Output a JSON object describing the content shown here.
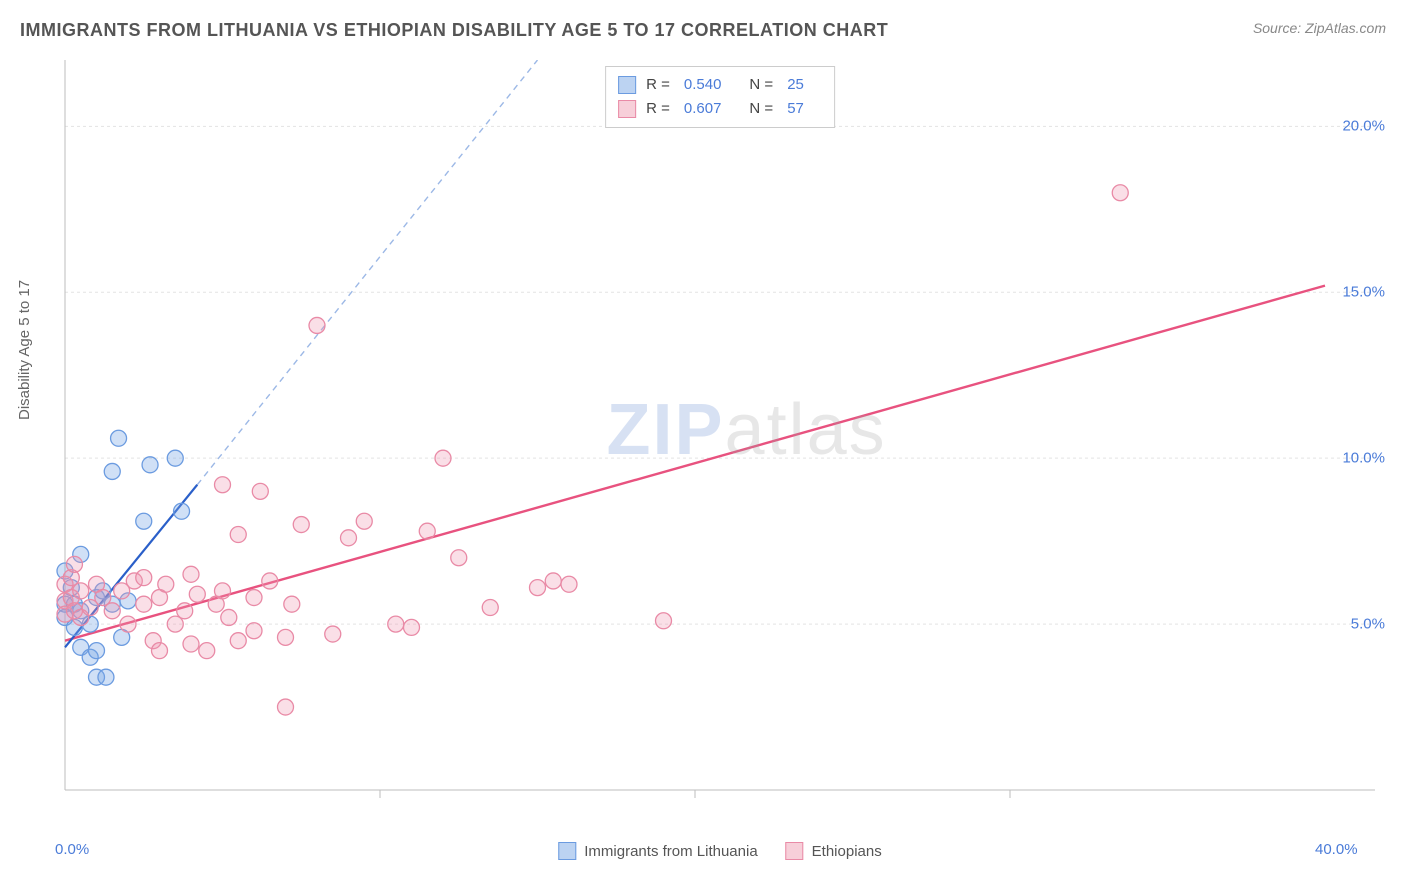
{
  "header": {
    "title": "IMMIGRANTS FROM LITHUANIA VS ETHIOPIAN DISABILITY AGE 5 TO 17 CORRELATION CHART",
    "source": "Source: ZipAtlas.com"
  },
  "watermark": {
    "part1": "ZIP",
    "part2": "atlas"
  },
  "chart": {
    "type": "scatter",
    "y_axis_label": "Disability Age 5 to 17",
    "xlim": [
      0,
      40
    ],
    "ylim": [
      0,
      22
    ],
    "x_ticks": [
      {
        "value": 0,
        "label": "0.0%"
      },
      {
        "value": 40,
        "label": "40.0%"
      }
    ],
    "y_ticks": [
      {
        "value": 5,
        "label": "5.0%"
      },
      {
        "value": 10,
        "label": "10.0%"
      },
      {
        "value": 15,
        "label": "15.0%"
      },
      {
        "value": 20,
        "label": "20.0%"
      }
    ],
    "x_tick_marks": [
      10,
      20,
      30
    ],
    "grid_color": "#e3e3e3",
    "axis_color": "#bdbdbd",
    "background_color": "#ffffff",
    "marker_radius": 8,
    "marker_stroke_width": 1.3,
    "series": [
      {
        "id": "lithuania",
        "label": "Immigrants from Lithuania",
        "color_fill": "rgba(120,165,230,0.35)",
        "color_stroke": "#6b9be0",
        "swatch_fill": "#bcd3f2",
        "swatch_stroke": "#6b9be0",
        "trend": {
          "x1": 0,
          "y1": 4.3,
          "x2": 4.2,
          "y2": 9.2,
          "color": "#2a5fc9",
          "width": 2.2,
          "dash": ""
        },
        "trend_ext": {
          "x1": 4.2,
          "y1": 9.2,
          "x2": 15,
          "y2": 22,
          "color": "#9cb8e6",
          "width": 1.4,
          "dash": "6 5"
        },
        "R": "0.540",
        "N": "25",
        "points": [
          [
            0.0,
            5.6
          ],
          [
            0.0,
            6.6
          ],
          [
            0.0,
            5.2
          ],
          [
            0.2,
            6.1
          ],
          [
            0.3,
            5.6
          ],
          [
            0.3,
            4.9
          ],
          [
            0.5,
            4.3
          ],
          [
            0.5,
            5.4
          ],
          [
            0.5,
            7.1
          ],
          [
            0.8,
            5.0
          ],
          [
            0.8,
            4.0
          ],
          [
            1.0,
            3.4
          ],
          [
            1.0,
            5.8
          ],
          [
            1.0,
            4.2
          ],
          [
            1.2,
            6.0
          ],
          [
            1.3,
            3.4
          ],
          [
            1.5,
            5.6
          ],
          [
            1.5,
            9.6
          ],
          [
            1.7,
            10.6
          ],
          [
            1.8,
            4.6
          ],
          [
            2.0,
            5.7
          ],
          [
            2.5,
            8.1
          ],
          [
            2.7,
            9.8
          ],
          [
            3.5,
            10.0
          ],
          [
            3.7,
            8.4
          ]
        ]
      },
      {
        "id": "ethiopians",
        "label": "Ethiopians",
        "color_fill": "rgba(240,150,175,0.30)",
        "color_stroke": "#e98aa6",
        "swatch_fill": "#f7cfd9",
        "swatch_stroke": "#e98aa6",
        "trend": {
          "x1": 0,
          "y1": 4.5,
          "x2": 40,
          "y2": 15.2,
          "color": "#e8527f",
          "width": 2.4,
          "dash": ""
        },
        "R": "0.607",
        "N": "57",
        "points": [
          [
            0.0,
            5.7
          ],
          [
            0.0,
            6.2
          ],
          [
            0.0,
            5.3
          ],
          [
            0.2,
            6.4
          ],
          [
            0.2,
            5.8
          ],
          [
            0.3,
            6.8
          ],
          [
            0.3,
            5.4
          ],
          [
            0.5,
            6.0
          ],
          [
            0.5,
            5.2
          ],
          [
            0.8,
            5.5
          ],
          [
            1.0,
            6.2
          ],
          [
            1.2,
            5.8
          ],
          [
            1.5,
            5.4
          ],
          [
            1.8,
            6.0
          ],
          [
            2.0,
            5.0
          ],
          [
            2.2,
            6.3
          ],
          [
            2.5,
            5.6
          ],
          [
            2.5,
            6.4
          ],
          [
            2.8,
            4.5
          ],
          [
            3.0,
            4.2
          ],
          [
            3.0,
            5.8
          ],
          [
            3.2,
            6.2
          ],
          [
            3.5,
            5.0
          ],
          [
            3.8,
            5.4
          ],
          [
            4.0,
            4.4
          ],
          [
            4.0,
            6.5
          ],
          [
            4.2,
            5.9
          ],
          [
            4.5,
            4.2
          ],
          [
            4.8,
            5.6
          ],
          [
            5.0,
            6.0
          ],
          [
            5.0,
            9.2
          ],
          [
            5.2,
            5.2
          ],
          [
            5.5,
            4.5
          ],
          [
            5.5,
            7.7
          ],
          [
            6.0,
            5.8
          ],
          [
            6.0,
            4.8
          ],
          [
            6.2,
            9.0
          ],
          [
            6.5,
            6.3
          ],
          [
            7.0,
            4.6
          ],
          [
            7.0,
            2.5
          ],
          [
            7.2,
            5.6
          ],
          [
            7.5,
            8.0
          ],
          [
            8.0,
            14.0
          ],
          [
            8.5,
            4.7
          ],
          [
            9.0,
            7.6
          ],
          [
            9.5,
            8.1
          ],
          [
            10.5,
            5.0
          ],
          [
            11.0,
            4.9
          ],
          [
            11.5,
            7.8
          ],
          [
            12.0,
            10.0
          ],
          [
            12.5,
            7.0
          ],
          [
            13.5,
            5.5
          ],
          [
            15.0,
            6.1
          ],
          [
            15.5,
            6.3
          ],
          [
            16.0,
            6.2
          ],
          [
            19.0,
            5.1
          ],
          [
            33.5,
            18.0
          ]
        ]
      }
    ]
  },
  "legend_top": {
    "R_label": "R =",
    "N_label": "N ="
  },
  "legend_bottom_labels": {
    "lithuania": "Immigrants from Lithuania",
    "ethiopians": "Ethiopians"
  }
}
